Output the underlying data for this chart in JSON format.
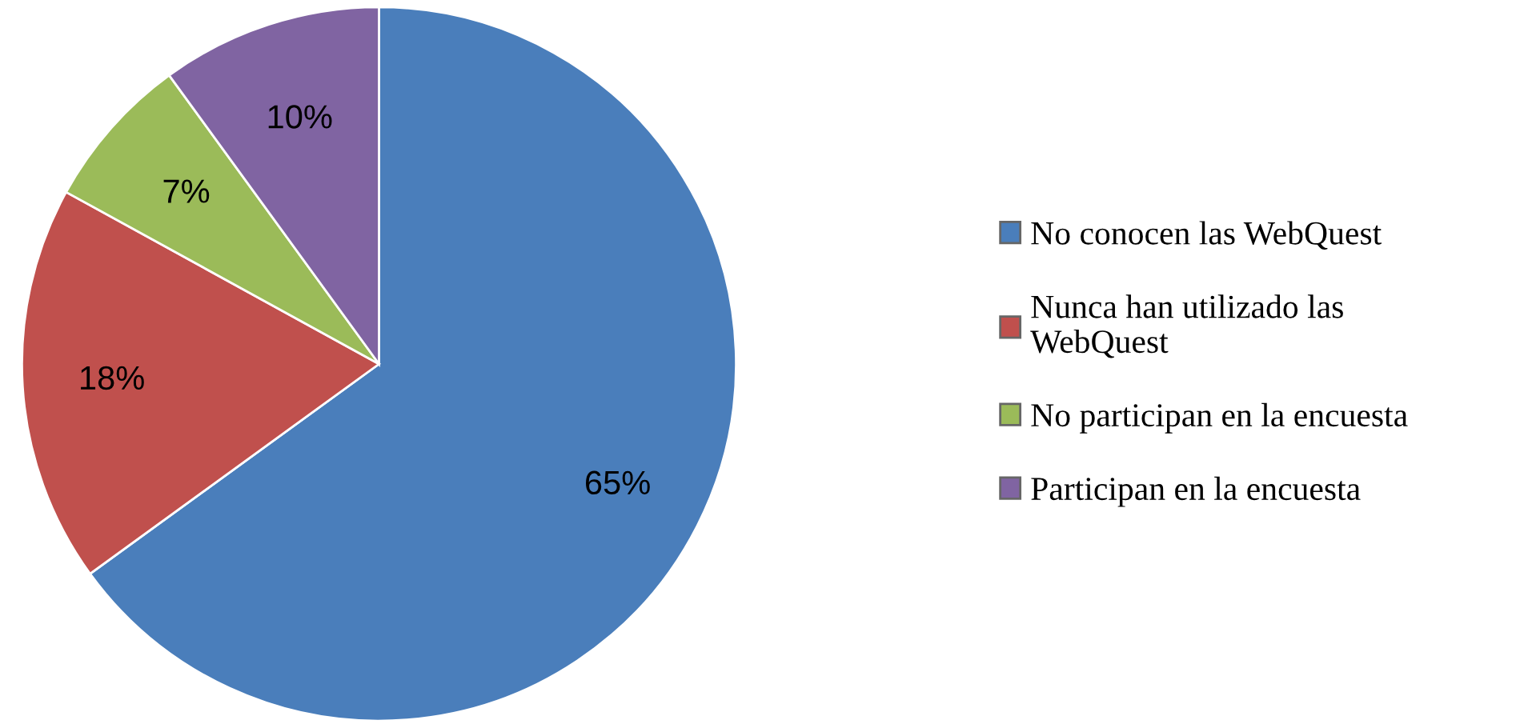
{
  "chart_data": {
    "type": "pie",
    "categories": [
      "No conocen las WebQuest",
      "Nunca han utilizado las\nWebQuest",
      "No participan en la encuesta",
      "Participan en la encuesta"
    ],
    "values": [
      65,
      18,
      7,
      10
    ],
    "colors": [
      "#4a7ebb",
      "#c0504d",
      "#9bbb59",
      "#8064a2"
    ],
    "value_labels": [
      "65%",
      "18%",
      "7%",
      "10%"
    ],
    "legend": "right"
  }
}
